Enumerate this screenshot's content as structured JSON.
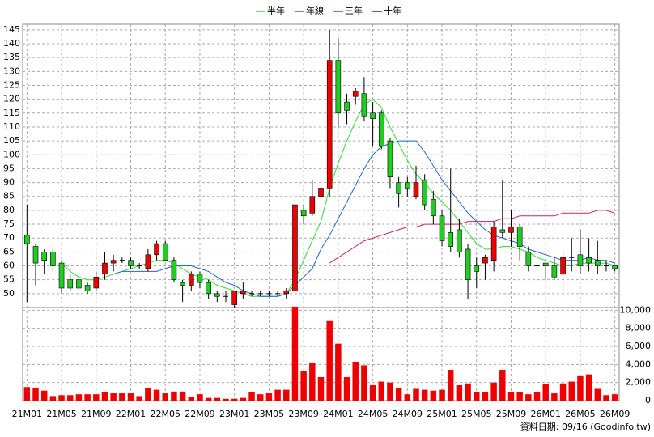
{
  "chart_data": {
    "type": "candlestick",
    "categories": [
      "21M01",
      null,
      null,
      null,
      "21M05",
      null,
      null,
      null,
      "21M09",
      null,
      null,
      null,
      "22M01",
      null,
      null,
      null,
      "22M05",
      null,
      null,
      null,
      "22M09",
      null,
      null,
      null,
      "23M01",
      null,
      null,
      null,
      "23M05",
      null,
      null,
      null,
      "23M09",
      null,
      null,
      null,
      "24M01",
      null,
      null,
      null,
      "24M05",
      null,
      null,
      null,
      "24M09",
      null,
      null,
      null,
      "25M01",
      null,
      null,
      null,
      "25M05",
      null,
      null,
      null,
      "25M09",
      null,
      null,
      null,
      "26M01",
      null,
      null,
      null,
      "26M05",
      null,
      null,
      null,
      "26M09"
    ],
    "open": [
      71,
      67,
      65,
      65,
      61,
      55,
      55,
      53,
      52,
      57,
      61,
      62,
      62,
      60,
      59,
      64,
      68,
      62,
      54,
      53,
      57,
      54,
      50,
      49,
      46,
      50,
      50,
      50,
      50,
      50,
      50,
      51,
      80,
      79,
      85,
      88,
      134,
      119,
      121,
      122,
      115,
      115,
      105,
      90,
      90,
      85,
      91,
      84,
      78,
      72,
      73,
      66,
      60,
      61,
      62,
      73,
      72,
      74,
      65,
      60,
      61,
      60,
      57,
      63,
      64,
      63,
      62,
      60,
      60
    ],
    "high": [
      82,
      68,
      66,
      67,
      62,
      57,
      57,
      54,
      58,
      65,
      64,
      63,
      63,
      61,
      66,
      69,
      69,
      63,
      55,
      58,
      58,
      55,
      51,
      51,
      51,
      54,
      51,
      51,
      51,
      51,
      52,
      86,
      82,
      91,
      88,
      145,
      142,
      122,
      124,
      128,
      119,
      116,
      106,
      92,
      92,
      96,
      93,
      87,
      80,
      95,
      77,
      68,
      63,
      64,
      76,
      91,
      80,
      75,
      67,
      61,
      61,
      63,
      65,
      70,
      73,
      70,
      69,
      62,
      60
    ],
    "low": [
      47,
      53,
      57,
      58,
      50,
      51,
      51,
      50,
      51,
      55,
      58,
      61,
      59,
      59,
      58,
      62,
      62,
      54,
      47,
      51,
      52,
      48,
      47,
      47,
      45,
      48,
      49,
      49,
      49,
      49,
      48,
      51,
      75,
      78,
      80,
      85,
      110,
      111,
      118,
      112,
      103,
      102,
      88,
      81,
      85,
      84,
      80,
      75,
      67,
      65,
      63,
      48,
      52,
      55,
      58,
      70,
      67,
      62,
      58,
      58,
      55,
      55,
      51,
      58,
      57,
      58,
      57,
      58,
      58
    ],
    "close": [
      68,
      61,
      62,
      60,
      52,
      52,
      52,
      51,
      56,
      61,
      62,
      62,
      60,
      60,
      64,
      68,
      62,
      55,
      53,
      57,
      54,
      50,
      49,
      49,
      51,
      51,
      50,
      50,
      50,
      50,
      51,
      82,
      78,
      85,
      88,
      134,
      115,
      116,
      123,
      114,
      113,
      103,
      92,
      86,
      88,
      90,
      82,
      78,
      69,
      67,
      65,
      55,
      58,
      63,
      74,
      72,
      74,
      67,
      60,
      60,
      60,
      56,
      63,
      63,
      60,
      61,
      60,
      60,
      59
    ],
    "up_color": "#ee0000",
    "down_color": "#22cc22",
    "series": [
      {
        "name": "半年",
        "color": "#33dd33",
        "values": [
          null,
          null,
          null,
          null,
          61,
          58,
          56,
          55,
          55,
          56,
          57,
          58,
          59,
          60,
          61,
          62,
          62,
          61,
          59,
          57,
          56,
          55,
          53,
          52,
          51,
          50,
          49,
          49,
          49,
          49,
          50,
          55,
          62,
          69,
          76,
          88,
          97,
          105,
          112,
          118,
          120,
          117,
          110,
          104,
          98,
          93,
          90,
          86,
          83,
          80,
          76,
          72,
          68,
          66,
          66,
          67,
          67,
          66,
          65,
          63,
          62,
          61,
          60,
          60,
          61,
          61,
          61,
          61,
          60
        ]
      },
      {
        "name": "年線",
        "color": "#2266cc",
        "values": [
          null,
          null,
          null,
          null,
          null,
          null,
          null,
          null,
          null,
          null,
          57,
          58,
          58,
          58,
          58,
          58,
          59,
          60,
          60,
          60,
          59,
          58,
          56,
          54,
          53,
          51,
          50,
          49,
          49,
          49,
          50,
          53,
          56,
          59,
          66,
          71,
          77,
          83,
          89,
          95,
          100,
          103,
          104,
          105,
          105,
          105,
          101,
          96,
          91,
          87,
          83,
          79,
          76,
          73,
          71,
          70,
          69,
          68,
          66,
          65,
          64,
          63,
          62,
          62,
          62,
          63,
          62,
          62,
          61
        ]
      },
      {
        "name": "三年",
        "color": "#cc2266",
        "values": [
          null,
          null,
          null,
          null,
          null,
          null,
          null,
          null,
          null,
          null,
          null,
          null,
          null,
          null,
          null,
          null,
          null,
          null,
          null,
          null,
          null,
          null,
          null,
          null,
          null,
          null,
          null,
          null,
          null,
          null,
          null,
          null,
          null,
          null,
          null,
          61,
          63,
          65,
          67,
          69,
          70,
          71,
          72,
          73,
          74,
          74,
          75,
          75,
          75,
          75,
          75,
          76,
          76,
          76,
          76,
          77,
          77,
          78,
          78,
          78,
          78,
          78,
          79,
          79,
          79,
          79,
          80,
          80,
          79
        ]
      },
      {
        "name": "十年",
        "color": "#880088"
      }
    ],
    "ylim": [
      45,
      147
    ],
    "yticks": [
      50,
      55,
      60,
      65,
      70,
      75,
      80,
      85,
      90,
      95,
      100,
      105,
      110,
      115,
      120,
      125,
      130,
      135,
      140,
      145
    ],
    "volume": {
      "color": "#ee0000",
      "values": [
        1500,
        1400,
        1100,
        500,
        600,
        600,
        700,
        700,
        700,
        900,
        800,
        800,
        800,
        500,
        1400,
        1200,
        800,
        1000,
        1000,
        400,
        700,
        300,
        300,
        200,
        200,
        300,
        900,
        700,
        800,
        1200,
        1200,
        10400,
        3300,
        4200,
        2600,
        8800,
        6300,
        2600,
        4300,
        3900,
        1700,
        2100,
        2000,
        1400,
        700,
        1300,
        1200,
        1100,
        1200,
        3400,
        1700,
        1900,
        900,
        900,
        2000,
        3400,
        900,
        900,
        700,
        900,
        1800,
        800,
        1900,
        2100,
        2700,
        2900,
        1300,
        600,
        700
      ],
      "ylim": [
        0,
        10300
      ],
      "yticks": [
        0,
        {
          "value": 2000,
          "label": "2,000"
        },
        {
          "value": 4000,
          "label": "4,000"
        },
        {
          "value": 6000,
          "label": "6,000"
        },
        {
          "value": 8000,
          "label": "8,000"
        },
        {
          "value": 10000,
          "label": "10,000"
        }
      ]
    },
    "grid": true,
    "source": "資料日期: 09/16 (Goodinfo.tw)"
  }
}
